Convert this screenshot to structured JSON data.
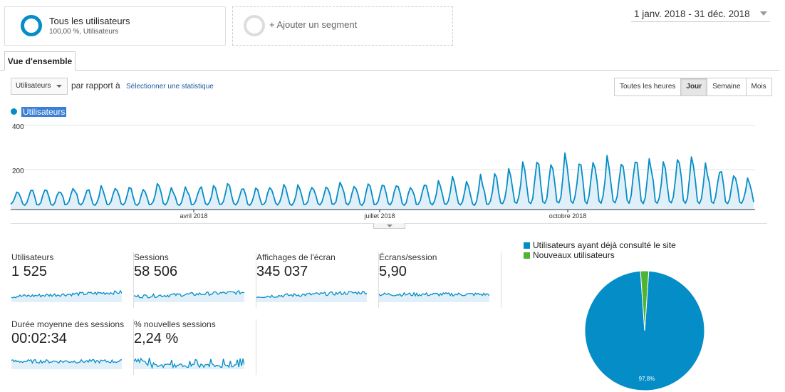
{
  "segments": {
    "active": {
      "title": "Tous les utilisateurs",
      "subtitle": "100,00 %, Utilisateurs"
    },
    "add": {
      "label": "+ Ajouter un segment"
    }
  },
  "date_range": "1 janv. 2018 - 31 déc. 2018",
  "tabs": [
    {
      "label": "Vue d'ensemble"
    }
  ],
  "controls": {
    "metric": "Utilisateurs",
    "compare_text": "par rapport à",
    "select_stat": "Sélectionner une statistique",
    "time_buttons": [
      "Toutes les heures",
      "Jour",
      "Semaine",
      "Mois"
    ],
    "active_time_button": "Jour"
  },
  "colors": {
    "accent": "#058dc7",
    "new_users": "#50b432",
    "fill": "#e1f0f8",
    "highlight": "#3a7fd5"
  },
  "chart_data": {
    "type": "area",
    "series": [
      {
        "name": "Utilisateurs"
      }
    ],
    "y_ticks": [
      "400",
      "200"
    ],
    "ylim": [
      0,
      400
    ],
    "x_labels": [
      "avril 2018",
      "juillet 2018",
      "octobre 2018"
    ],
    "weekly": [
      {
        "low": 25,
        "high": 95
      },
      {
        "low": 20,
        "high": 105
      },
      {
        "low": 22,
        "high": 110
      },
      {
        "low": 20,
        "high": 100
      },
      {
        "low": 25,
        "high": 115
      },
      {
        "low": 22,
        "high": 108
      },
      {
        "low": 20,
        "high": 112
      },
      {
        "low": 24,
        "high": 120
      },
      {
        "low": 22,
        "high": 110
      },
      {
        "low": 20,
        "high": 105
      },
      {
        "low": 25,
        "high": 125
      },
      {
        "low": 22,
        "high": 112
      },
      {
        "low": 20,
        "high": 110
      },
      {
        "low": 24,
        "high": 118
      },
      {
        "low": 22,
        "high": 115
      },
      {
        "low": 25,
        "high": 128
      },
      {
        "low": 22,
        "high": 120
      },
      {
        "low": 20,
        "high": 118
      },
      {
        "low": 25,
        "high": 125
      },
      {
        "low": 22,
        "high": 130
      },
      {
        "low": 20,
        "high": 115
      },
      {
        "low": 25,
        "high": 128
      },
      {
        "low": 22,
        "high": 120
      },
      {
        "low": 25,
        "high": 135
      },
      {
        "low": 22,
        "high": 122
      },
      {
        "low": 20,
        "high": 128
      },
      {
        "low": 25,
        "high": 130
      },
      {
        "low": 22,
        "high": 140
      },
      {
        "low": 20,
        "high": 125
      },
      {
        "low": 25,
        "high": 145
      },
      {
        "low": 22,
        "high": 135
      },
      {
        "low": 25,
        "high": 155
      },
      {
        "low": 22,
        "high": 145
      },
      {
        "low": 20,
        "high": 165
      },
      {
        "low": 25,
        "high": 175
      },
      {
        "low": 28,
        "high": 200
      },
      {
        "low": 30,
        "high": 220
      },
      {
        "low": 28,
        "high": 240
      },
      {
        "low": 30,
        "high": 225
      },
      {
        "low": 32,
        "high": 260
      },
      {
        "low": 30,
        "high": 245
      },
      {
        "low": 28,
        "high": 280
      },
      {
        "low": 30,
        "high": 255
      },
      {
        "low": 32,
        "high": 270
      },
      {
        "low": 30,
        "high": 285
      },
      {
        "low": 28,
        "high": 260
      },
      {
        "low": 30,
        "high": 250
      },
      {
        "low": 32,
        "high": 265
      },
      {
        "low": 30,
        "high": 240
      },
      {
        "low": 28,
        "high": 235
      },
      {
        "low": 30,
        "high": 215
      },
      {
        "low": 28,
        "high": 200
      },
      {
        "low": 30,
        "high": 170
      }
    ]
  },
  "scorecards": [
    {
      "label": "Utilisateurs",
      "value": "1 525",
      "shape": "rise"
    },
    {
      "label": "Sessions",
      "value": "58 506",
      "shape": "rise"
    },
    {
      "label": "Affichages de l'écran",
      "value": "345 037",
      "shape": "rise"
    },
    {
      "label": "Écrans/session",
      "value": "5,90",
      "shape": "flat"
    },
    {
      "label": "Durée moyenne des sessions",
      "value": "00:02:34",
      "shape": "flat"
    },
    {
      "label": "% nouvelles sessions",
      "value": "2,24 %",
      "shape": "decay"
    }
  ],
  "pie": {
    "legend": [
      {
        "label": "Utilisateurs ayant déjà consulté le site",
        "color": "#058dc7"
      },
      {
        "label": "Nouveaux utilisateurs",
        "color": "#50b432"
      }
    ],
    "chart_data": {
      "type": "pie",
      "slices": [
        {
          "label": "Utilisateurs ayant déjà consulté le site",
          "value": 97.8
        },
        {
          "label": "Nouveaux utilisateurs",
          "value": 2.2
        }
      ],
      "data_labels": [
        "97,8%"
      ]
    }
  }
}
